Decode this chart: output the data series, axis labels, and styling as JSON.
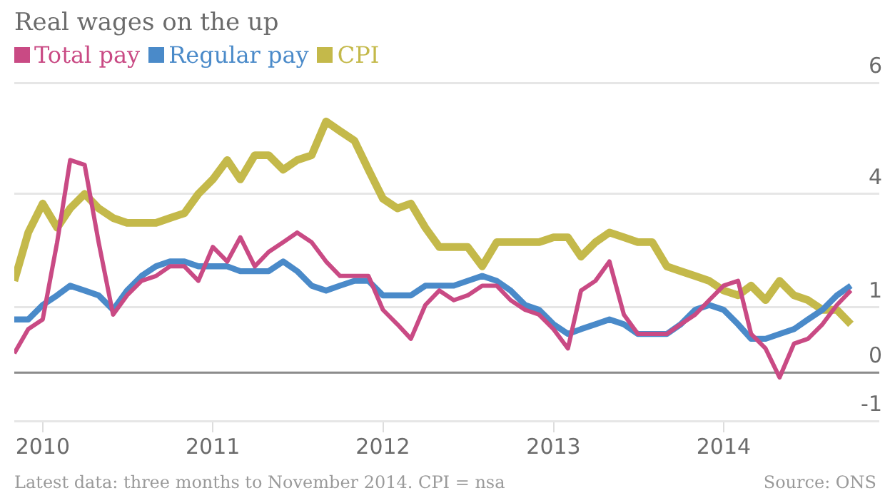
{
  "chart_data": {
    "type": "line",
    "title": "Real wages on the up",
    "x": [
      "2009-11",
      "2009-12",
      "2010-01",
      "2010-02",
      "2010-03",
      "2010-04",
      "2010-05",
      "2010-06",
      "2010-07",
      "2010-08",
      "2010-09",
      "2010-10",
      "2010-11",
      "2010-12",
      "2011-01",
      "2011-02",
      "2011-03",
      "2011-04",
      "2011-05",
      "2011-06",
      "2011-07",
      "2011-08",
      "2011-09",
      "2011-10",
      "2011-11",
      "2011-12",
      "2012-01",
      "2012-02",
      "2012-03",
      "2012-04",
      "2012-05",
      "2012-06",
      "2012-07",
      "2012-08",
      "2012-09",
      "2012-10",
      "2012-11",
      "2012-12",
      "2013-01",
      "2013-02",
      "2013-03",
      "2013-04",
      "2013-05",
      "2013-06",
      "2013-07",
      "2013-08",
      "2013-09",
      "2013-10",
      "2013-11",
      "2013-12",
      "2014-01",
      "2014-02",
      "2014-03",
      "2014-04",
      "2014-05",
      "2014-06",
      "2014-07",
      "2014-08",
      "2014-09",
      "2014-10"
    ],
    "series": [
      {
        "name": "Total pay",
        "color": "#c94a84",
        "values": [
          0.4,
          0.9,
          1.1,
          2.7,
          4.4,
          4.3,
          2.7,
          1.2,
          1.6,
          1.9,
          2.0,
          2.2,
          2.2,
          1.9,
          2.6,
          2.3,
          2.8,
          2.2,
          2.5,
          2.7,
          2.9,
          2.7,
          2.3,
          2.0,
          2.0,
          2.0,
          1.3,
          1.0,
          0.7,
          1.4,
          1.7,
          1.5,
          1.6,
          1.8,
          1.8,
          1.5,
          1.3,
          1.2,
          0.9,
          0.5,
          1.7,
          1.9,
          2.3,
          1.2,
          0.8,
          0.8,
          0.8,
          1.0,
          1.2,
          1.5,
          1.8,
          1.9,
          0.8,
          0.5,
          -0.1,
          0.6,
          0.7,
          1.0,
          1.4,
          1.7
        ]
      },
      {
        "name": "Regular pay",
        "color": "#4a8ac9",
        "values": [
          1.1,
          1.1,
          1.4,
          1.6,
          1.8,
          1.7,
          1.6,
          1.3,
          1.7,
          2.0,
          2.2,
          2.3,
          2.3,
          2.2,
          2.2,
          2.2,
          2.1,
          2.1,
          2.1,
          2.3,
          2.1,
          1.8,
          1.7,
          1.8,
          1.9,
          1.9,
          1.6,
          1.6,
          1.6,
          1.8,
          1.8,
          1.8,
          1.9,
          2.0,
          1.9,
          1.7,
          1.4,
          1.3,
          1.0,
          0.8,
          0.9,
          1.0,
          1.1,
          1.0,
          0.8,
          0.8,
          0.8,
          1.0,
          1.3,
          1.4,
          1.3,
          1.0,
          0.7,
          0.7,
          0.8,
          0.9,
          1.1,
          1.3,
          1.6,
          1.8
        ]
      },
      {
        "name": "CPI",
        "color": "#c4b94a",
        "values": [
          1.9,
          2.9,
          3.5,
          3.0,
          3.4,
          3.7,
          3.4,
          3.2,
          3.1,
          3.1,
          3.1,
          3.2,
          3.3,
          3.7,
          4.0,
          4.4,
          4.0,
          4.5,
          4.5,
          4.2,
          4.4,
          4.5,
          5.2,
          5.0,
          4.8,
          4.2,
          3.6,
          3.4,
          3.5,
          3.0,
          2.6,
          2.6,
          2.6,
          2.2,
          2.7,
          2.7,
          2.7,
          2.7,
          2.8,
          2.8,
          2.4,
          2.7,
          2.9,
          2.8,
          2.7,
          2.7,
          2.2,
          2.1,
          2.0,
          1.9,
          1.7,
          1.6,
          1.8,
          1.5,
          1.9,
          1.6,
          1.5,
          1.3,
          1.3,
          1.0
        ]
      }
    ],
    "xlim": [
      "2009-11",
      "2014-12"
    ],
    "xticks": [
      "2010",
      "2011",
      "2012",
      "2013",
      "2014"
    ],
    "ylim": [
      -1,
      6
    ],
    "yticks": [
      6,
      {
        "value": 3.7,
        "label": "4"
      },
      {
        "value": 1.35,
        "label": "1"
      },
      0,
      -1
    ],
    "ref_lines": [
      {
        "axis": "y",
        "value": 0,
        "color": "#8c8c8c"
      }
    ],
    "grid": "y",
    "legend": "top left",
    "marker": "none",
    "line_style": "solid",
    "annotations": [
      "Latest data: three months to November 2014. CPI = nsa",
      "Source: ONS"
    ]
  }
}
